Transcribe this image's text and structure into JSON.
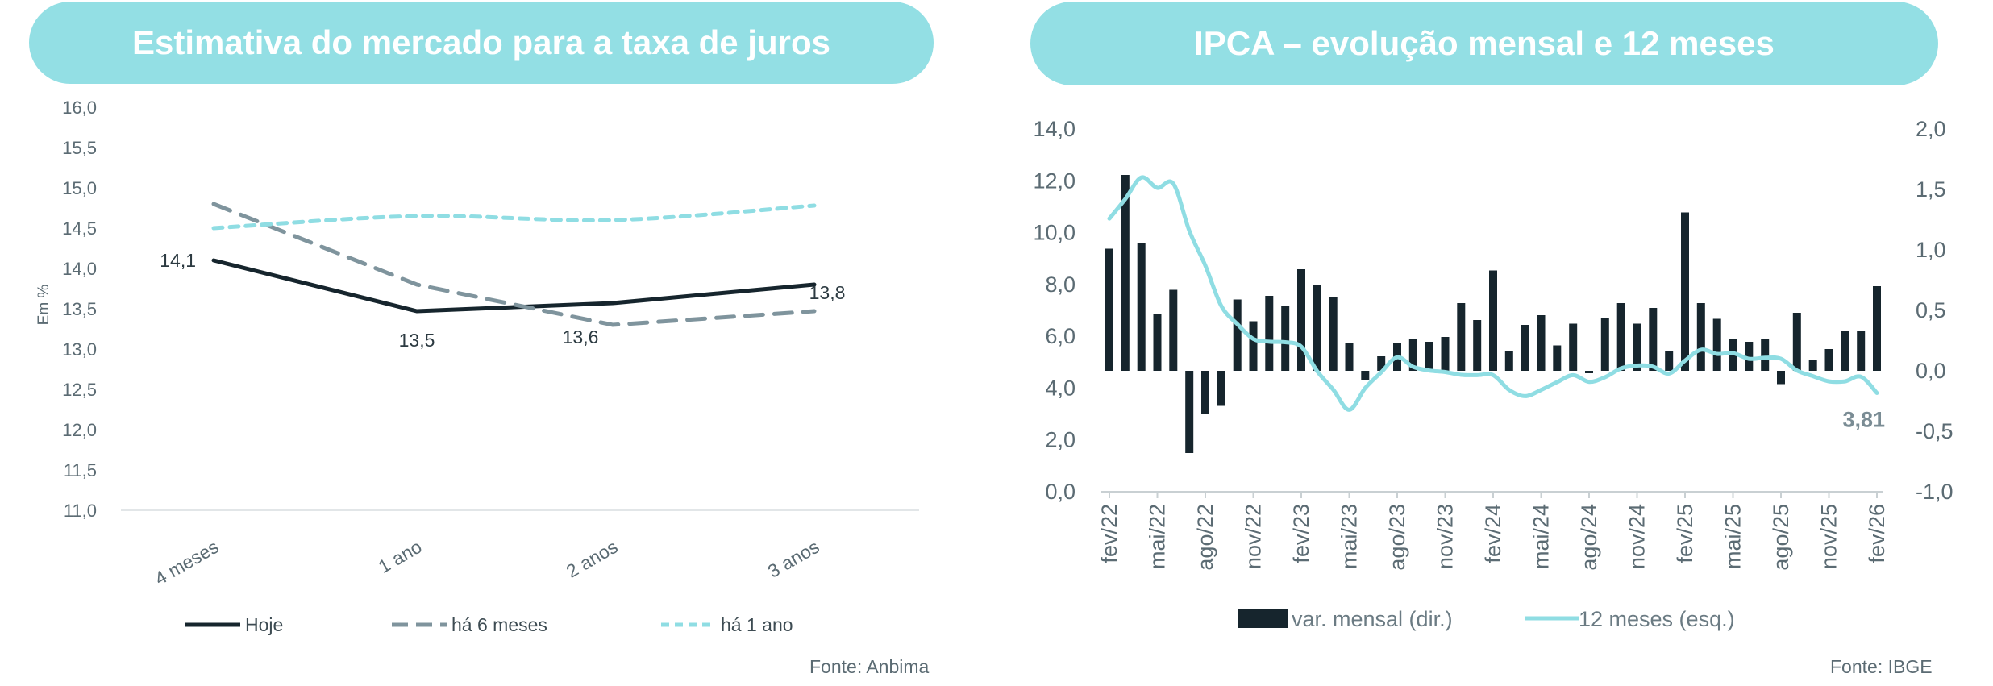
{
  "colors": {
    "title_bg": "#93dfe4",
    "dark": "#16252d",
    "gray": "#7f949d",
    "cyan": "#8fdde3",
    "axis_text": "#5b6b73"
  },
  "chart_data": [
    {
      "type": "line",
      "title": "Estimativa do mercado para a taxa de juros",
      "ylabel": "Em %",
      "ylim": [
        11.0,
        16.0
      ],
      "yticks": [
        "16,0",
        "15,5",
        "15,0",
        "14,5",
        "14,0",
        "13,5",
        "13,0",
        "12,5",
        "12,0",
        "11,5",
        "11,0"
      ],
      "categories": [
        "4 meses",
        "1 ano",
        "2 anos",
        "3 anos"
      ],
      "series": [
        {
          "name": "Hoje",
          "values": [
            14.1,
            13.47,
            13.57,
            13.8
          ],
          "style": "solid",
          "color": "#16252d"
        },
        {
          "name": "há 6 meses",
          "values": [
            14.8,
            13.8,
            13.3,
            13.47
          ],
          "style": "dashed",
          "color": "#7f949d"
        },
        {
          "name": "há 1 ano",
          "values": [
            14.5,
            14.65,
            14.6,
            14.78
          ],
          "style": "dotted",
          "color": "#8fdde3"
        }
      ],
      "data_labels": [
        "14,1",
        "13,5",
        "13,6",
        "13,8"
      ],
      "source": "Fonte: Anbima"
    },
    {
      "type": "bar+line",
      "title": "IPCA – evolução mensal e 12 meses",
      "left_axis": {
        "ylim": [
          0.0,
          14.0
        ],
        "ticks": [
          "14,0",
          "12,0",
          "10,0",
          "8,0",
          "6,0",
          "4,0",
          "2,0",
          "0,0"
        ]
      },
      "right_axis": {
        "ylim": [
          -1.0,
          2.0
        ],
        "ticks": [
          "2,0",
          "1,5",
          "1,0",
          "0,5",
          "0,0",
          "-0,5",
          "-1,0"
        ]
      },
      "x_tick_labels": [
        "fev/22",
        "mai/22",
        "ago/22",
        "nov/22",
        "fev/23",
        "mai/23",
        "ago/23",
        "nov/23",
        "fev/24",
        "mai/24",
        "ago/24",
        "nov/24",
        "fev/25",
        "mai/25",
        "ago/25",
        "nov/25",
        "fev/26"
      ],
      "months": 49,
      "series": [
        {
          "name": "var. mensal (dir.)",
          "axis": "right",
          "type": "bar",
          "values": [
            1.01,
            1.62,
            1.06,
            0.47,
            0.67,
            -0.68,
            -0.36,
            -0.29,
            0.59,
            0.41,
            0.62,
            0.54,
            0.84,
            0.71,
            0.61,
            0.23,
            -0.08,
            0.12,
            0.23,
            0.26,
            0.24,
            0.28,
            0.56,
            0.42,
            0.83,
            0.16,
            0.38,
            0.46,
            0.21,
            0.39,
            -0.02,
            0.44,
            0.56,
            0.39,
            0.52,
            0.16,
            1.31,
            0.56,
            0.43,
            0.26,
            0.24,
            0.26,
            -0.11,
            0.48,
            0.09,
            0.18,
            0.33,
            0.33,
            0.7
          ]
        },
        {
          "name": "12 meses (esq.)",
          "axis": "left",
          "type": "line",
          "values": [
            10.54,
            11.3,
            12.13,
            11.73,
            11.89,
            10.07,
            8.73,
            7.17,
            6.47,
            5.9,
            5.79,
            5.77,
            5.6,
            4.65,
            3.94,
            3.16,
            4.0,
            4.61,
            5.19,
            4.82,
            4.68,
            4.62,
            4.51,
            4.5,
            4.5,
            3.93,
            3.69,
            3.93,
            4.23,
            4.5,
            4.24,
            4.42,
            4.76,
            4.87,
            4.83,
            4.56,
            5.06,
            5.48,
            5.32,
            5.35,
            5.13,
            5.17,
            5.13,
            4.68,
            4.46,
            4.26,
            4.26,
            4.44,
            3.81
          ]
        }
      ],
      "last_value_label": "3,81",
      "source": "Fonte: IBGE"
    }
  ]
}
